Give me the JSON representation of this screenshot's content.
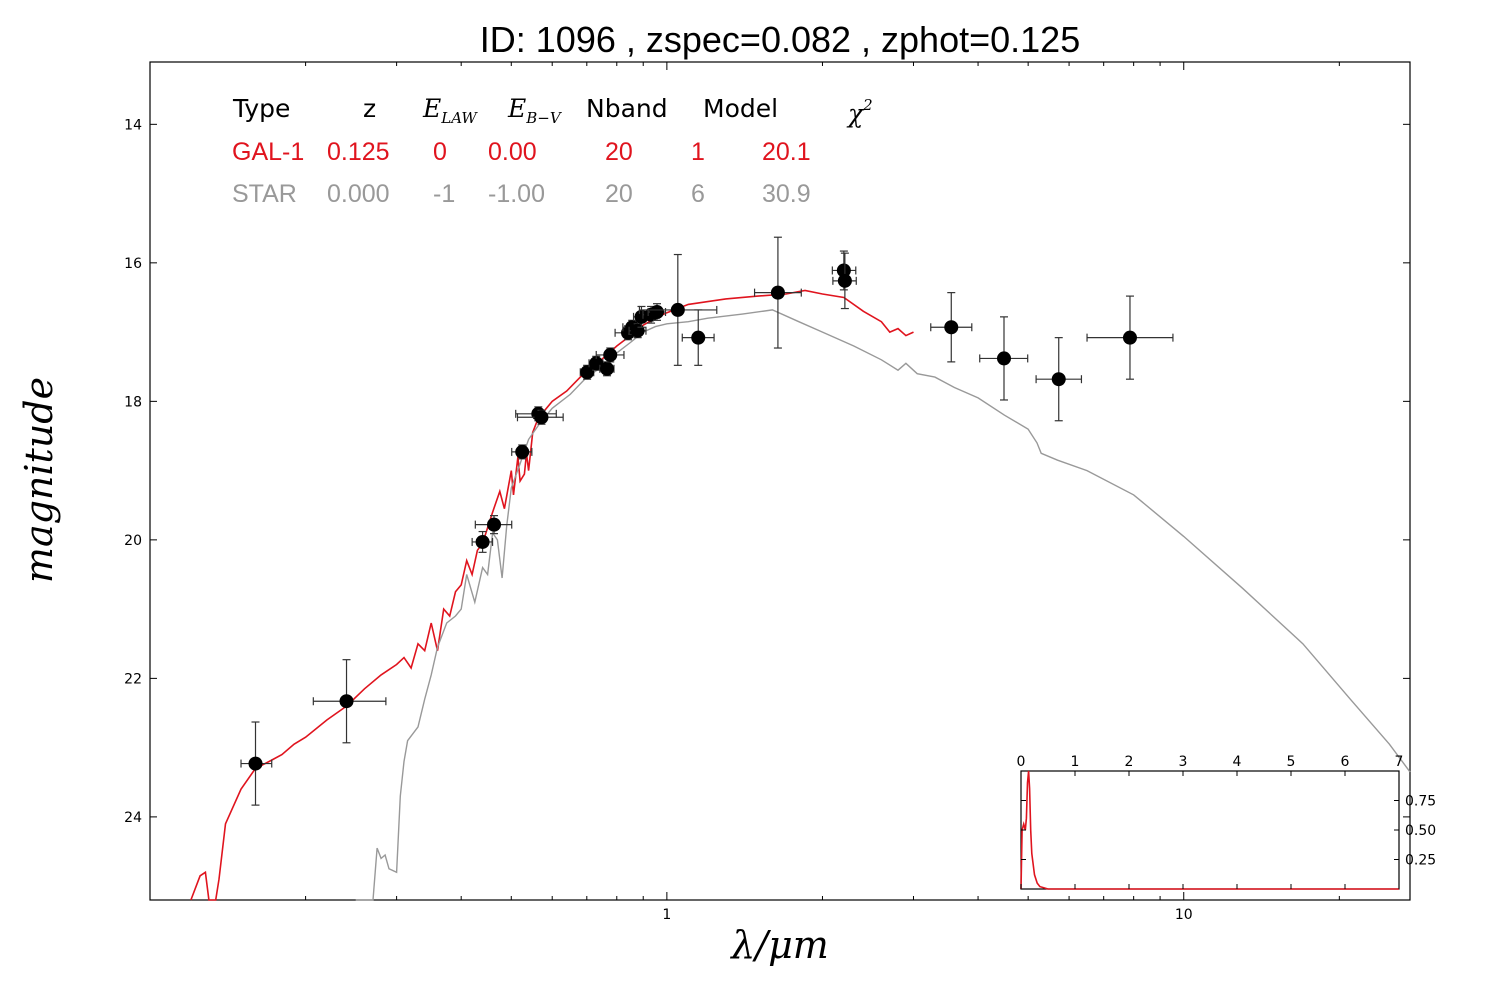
{
  "title": "ID:  1096  , zspec=0.082 , zphot=0.125",
  "colors": {
    "galaxy": "#e0141e",
    "star": "#999999",
    "points": "#000000"
  },
  "table": {
    "headers": {
      "type": "Type",
      "z": "z",
      "elaw_main": "E",
      "elaw_sub": "LAW",
      "ebv_main": "E",
      "ebv_sub": "B−V",
      "nband": "Nband",
      "model": "Model",
      "chi_main": "χ",
      "chi_sup": "2"
    },
    "rows": [
      {
        "name": "gal",
        "type": "GAL-1",
        "z": "0.125",
        "law": "0",
        "ebv": "0.00",
        "nband": "20",
        "model": "1",
        "chi2": "20.1",
        "color": "#e0141e"
      },
      {
        "name": "star",
        "type": "STAR",
        "z": "0.000",
        "law": "-1",
        "ebv": "-1.00",
        "nband": "20",
        "model": "6",
        "chi2": "30.9",
        "color": "#999999"
      }
    ]
  },
  "chart_data": [
    {
      "type": "scatter",
      "title": "ID:  1096  , zspec=0.082 , zphot=0.125",
      "xlabel": "λ/μm",
      "ylabel": "magnitude",
      "xscale": "log",
      "xlim": [
        0.1,
        27.4
      ],
      "ylim": [
        25.2,
        13.1
      ],
      "xticks": [
        {
          "v": 1,
          "label": "1"
        },
        {
          "v": 10,
          "label": "10"
        }
      ],
      "yticks": [
        14,
        16,
        18,
        20,
        22,
        24
      ],
      "points": [
        {
          "x": 0.16,
          "y": 23.23,
          "xerr": [
            0.15,
            0.172
          ],
          "yerr": [
            22.63,
            23.83
          ]
        },
        {
          "x": 0.24,
          "y": 22.33,
          "xerr": [
            0.207,
            0.286
          ],
          "yerr": [
            21.73,
            22.93
          ]
        },
        {
          "x": 0.44,
          "y": 20.03,
          "xerr": [
            0.42,
            0.46
          ],
          "yerr": [
            19.88,
            20.18
          ]
        },
        {
          "x": 0.463,
          "y": 19.78,
          "xerr": [
            0.426,
            0.501
          ],
          "yerr": [
            19.65,
            19.91
          ]
        },
        {
          "x": 0.525,
          "y": 18.73,
          "xerr": [
            0.501,
            0.548
          ],
          "yerr": [
            18.63,
            18.83
          ]
        },
        {
          "x": 0.564,
          "y": 18.18,
          "xerr": [
            0.51,
            0.611
          ],
          "yerr": [
            18.08,
            18.28
          ]
        },
        {
          "x": 0.572,
          "y": 18.23,
          "xerr": [
            0.514,
            0.63
          ],
          "yerr": [
            18.13,
            18.33
          ]
        },
        {
          "x": 0.701,
          "y": 17.58,
          "xerr": [
            0.68,
            0.722
          ],
          "yerr": [
            17.48,
            17.68
          ]
        },
        {
          "x": 0.73,
          "y": 17.45,
          "xerr": [
            0.707,
            0.752
          ],
          "yerr": [
            17.35,
            17.55
          ]
        },
        {
          "x": 0.766,
          "y": 17.53,
          "xerr": [
            0.742,
            0.79
          ],
          "yerr": [
            17.43,
            17.63
          ]
        },
        {
          "x": 0.777,
          "y": 17.33,
          "xerr": [
            0.73,
            0.826
          ],
          "yerr": [
            17.23,
            17.43
          ]
        },
        {
          "x": 0.841,
          "y": 17.01,
          "xerr": [
            0.794,
            0.888
          ],
          "yerr": [
            16.91,
            17.11
          ]
        },
        {
          "x": 0.857,
          "y": 16.93,
          "xerr": [
            0.822,
            0.893
          ],
          "yerr": [
            16.83,
            17.03
          ]
        },
        {
          "x": 0.878,
          "y": 16.98,
          "xerr": [
            0.845,
            0.911
          ],
          "yerr": [
            16.88,
            17.08
          ]
        },
        {
          "x": 0.893,
          "y": 16.78,
          "xerr": [
            0.862,
            0.924
          ],
          "yerr": [
            16.63,
            16.93
          ]
        },
        {
          "x": 0.932,
          "y": 16.75,
          "xerr": [
            0.899,
            0.966
          ],
          "yerr": [
            16.63,
            16.87
          ]
        },
        {
          "x": 0.957,
          "y": 16.71,
          "xerr": [
            0.92,
            0.994
          ],
          "yerr": [
            16.59,
            16.83
          ]
        },
        {
          "x": 1.05,
          "y": 16.68,
          "xerr": [
            0.885,
            1.249
          ],
          "yerr": [
            15.88,
            17.48
          ]
        },
        {
          "x": 1.15,
          "y": 17.08,
          "xerr": [
            1.071,
            1.234
          ],
          "yerr": [
            16.68,
            17.48
          ]
        },
        {
          "x": 1.64,
          "y": 16.43,
          "xerr": [
            1.478,
            1.82
          ],
          "yerr": [
            15.63,
            17.23
          ]
        },
        {
          "x": 2.2,
          "y": 16.11,
          "xerr": [
            2.09,
            2.32
          ],
          "yerr": [
            15.83,
            16.39
          ]
        },
        {
          "x": 2.21,
          "y": 16.26,
          "xerr": [
            2.095,
            2.325
          ],
          "yerr": [
            15.86,
            16.66
          ]
        },
        {
          "x": 3.55,
          "y": 16.93,
          "xerr": [
            3.24,
            3.89
          ],
          "yerr": [
            16.43,
            17.43
          ]
        },
        {
          "x": 4.49,
          "y": 17.38,
          "xerr": [
            4.03,
            4.99
          ],
          "yerr": [
            16.78,
            17.98
          ]
        },
        {
          "x": 5.73,
          "y": 17.68,
          "xerr": [
            5.18,
            6.34
          ],
          "yerr": [
            17.08,
            18.28
          ]
        },
        {
          "x": 7.87,
          "y": 17.08,
          "xerr": [
            6.5,
            9.53
          ],
          "yerr": [
            16.48,
            17.68
          ]
        }
      ],
      "series": [
        {
          "name": "GAL-1",
          "color": "#e0141e",
          "points": [
            [
              0.12,
              25.2
            ],
            [
              0.125,
              24.85
            ],
            [
              0.128,
              24.8
            ],
            [
              0.13,
              25.2
            ],
            [
              0.134,
              25.2
            ],
            [
              0.136,
              24.9
            ],
            [
              0.14,
              24.1
            ],
            [
              0.15,
              23.6
            ],
            [
              0.16,
              23.3
            ],
            [
              0.17,
              23.2
            ],
            [
              0.18,
              23.1
            ],
            [
              0.19,
              22.95
            ],
            [
              0.2,
              22.85
            ],
            [
              0.22,
              22.6
            ],
            [
              0.24,
              22.4
            ],
            [
              0.26,
              22.15
            ],
            [
              0.28,
              21.95
            ],
            [
              0.3,
              21.8
            ],
            [
              0.31,
              21.7
            ],
            [
              0.32,
              21.85
            ],
            [
              0.33,
              21.5
            ],
            [
              0.34,
              21.6
            ],
            [
              0.35,
              21.2
            ],
            [
              0.36,
              21.6
            ],
            [
              0.37,
              21.0
            ],
            [
              0.38,
              21.1
            ],
            [
              0.39,
              20.75
            ],
            [
              0.4,
              20.65
            ],
            [
              0.41,
              20.3
            ],
            [
              0.42,
              20.5
            ],
            [
              0.43,
              20.15
            ],
            [
              0.44,
              20.05
            ],
            [
              0.46,
              19.6
            ],
            [
              0.475,
              19.3
            ],
            [
              0.485,
              19.55
            ],
            [
              0.5,
              19.0
            ],
            [
              0.505,
              19.35
            ],
            [
              0.515,
              18.8
            ],
            [
              0.52,
              19.15
            ],
            [
              0.53,
              19.05
            ],
            [
              0.535,
              18.75
            ],
            [
              0.54,
              19.0
            ],
            [
              0.55,
              18.45
            ],
            [
              0.56,
              18.3
            ],
            [
              0.57,
              18.2
            ],
            [
              0.6,
              18.0
            ],
            [
              0.64,
              17.85
            ],
            [
              0.68,
              17.65
            ],
            [
              0.72,
              17.5
            ],
            [
              0.76,
              17.35
            ],
            [
              0.8,
              17.2
            ],
            [
              0.85,
              17.05
            ],
            [
              0.9,
              16.9
            ],
            [
              0.95,
              16.8
            ],
            [
              1.0,
              16.72
            ],
            [
              1.1,
              16.6
            ],
            [
              1.2,
              16.56
            ],
            [
              1.3,
              16.52
            ],
            [
              1.5,
              16.48
            ],
            [
              1.7,
              16.45
            ],
            [
              1.85,
              16.4
            ],
            [
              2.0,
              16.45
            ],
            [
              2.2,
              16.5
            ],
            [
              2.4,
              16.7
            ],
            [
              2.6,
              16.85
            ],
            [
              2.7,
              17.0
            ],
            [
              2.8,
              16.95
            ],
            [
              2.9,
              17.05
            ],
            [
              3.0,
              17.0
            ]
          ]
        },
        {
          "name": "STAR",
          "color": "#999999",
          "points": [
            [
              0.25,
              25.2
            ],
            [
              0.27,
              25.2
            ],
            [
              0.275,
              24.45
            ],
            [
              0.28,
              24.6
            ],
            [
              0.285,
              24.55
            ],
            [
              0.29,
              24.75
            ],
            [
              0.3,
              24.8
            ],
            [
              0.305,
              23.7
            ],
            [
              0.31,
              23.2
            ],
            [
              0.315,
              22.9
            ],
            [
              0.33,
              22.7
            ],
            [
              0.34,
              22.3
            ],
            [
              0.35,
              21.95
            ],
            [
              0.36,
              21.55
            ],
            [
              0.375,
              21.2
            ],
            [
              0.39,
              21.1
            ],
            [
              0.4,
              21.0
            ],
            [
              0.41,
              20.5
            ],
            [
              0.425,
              20.9
            ],
            [
              0.44,
              20.4
            ],
            [
              0.45,
              20.5
            ],
            [
              0.46,
              19.9
            ],
            [
              0.47,
              20.0
            ],
            [
              0.48,
              20.55
            ],
            [
              0.49,
              19.8
            ],
            [
              0.5,
              19.25
            ],
            [
              0.52,
              18.9
            ],
            [
              0.54,
              18.55
            ],
            [
              0.57,
              18.3
            ],
            [
              0.6,
              18.1
            ],
            [
              0.65,
              17.9
            ],
            [
              0.7,
              17.65
            ],
            [
              0.75,
              17.5
            ],
            [
              0.8,
              17.3
            ],
            [
              0.85,
              17.15
            ],
            [
              0.9,
              17.0
            ],
            [
              0.95,
              16.92
            ],
            [
              1.0,
              16.88
            ],
            [
              1.1,
              16.85
            ],
            [
              1.2,
              16.8
            ],
            [
              1.4,
              16.74
            ],
            [
              1.6,
              16.68
            ],
            [
              1.8,
              16.85
            ],
            [
              2.0,
              17.0
            ],
            [
              2.3,
              17.2
            ],
            [
              2.6,
              17.4
            ],
            [
              2.8,
              17.55
            ],
            [
              2.9,
              17.45
            ],
            [
              3.05,
              17.6
            ],
            [
              3.3,
              17.65
            ],
            [
              3.6,
              17.8
            ],
            [
              4.0,
              17.95
            ],
            [
              4.5,
              18.2
            ],
            [
              5.0,
              18.4
            ],
            [
              5.2,
              18.6
            ],
            [
              5.3,
              18.75
            ],
            [
              5.7,
              18.85
            ],
            [
              6.5,
              19.0
            ],
            [
              8.0,
              19.35
            ],
            [
              10.0,
              19.95
            ],
            [
              13.0,
              20.7
            ],
            [
              17.0,
              21.5
            ],
            [
              21.0,
              22.3
            ],
            [
              25.0,
              22.95
            ],
            [
              27.4,
              23.35
            ]
          ]
        }
      ]
    },
    {
      "type": "line",
      "title": "",
      "xlim": [
        0,
        7
      ],
      "ylim": [
        0,
        1.0
      ],
      "xticks": [
        0,
        1,
        2,
        3,
        4,
        5,
        6,
        7
      ],
      "yticks": [
        {
          "v": 0.25,
          "label": "0.25"
        },
        {
          "v": 0.5,
          "label": "0.50"
        },
        {
          "v": 0.75,
          "label": "0.75"
        }
      ],
      "series": [
        {
          "name": "",
          "color": "#e0141e",
          "points": [
            [
              0.0,
              0.0
            ],
            [
              0.02,
              0.5
            ],
            [
              0.05,
              0.55
            ],
            [
              0.08,
              0.5
            ],
            [
              0.1,
              0.6
            ],
            [
              0.12,
              0.9
            ],
            [
              0.14,
              1.0
            ],
            [
              0.16,
              0.85
            ],
            [
              0.18,
              0.5
            ],
            [
              0.2,
              0.3
            ],
            [
              0.25,
              0.12
            ],
            [
              0.3,
              0.05
            ],
            [
              0.35,
              0.02
            ],
            [
              0.5,
              0.0
            ],
            [
              7.0,
              0.0
            ]
          ]
        }
      ]
    }
  ]
}
